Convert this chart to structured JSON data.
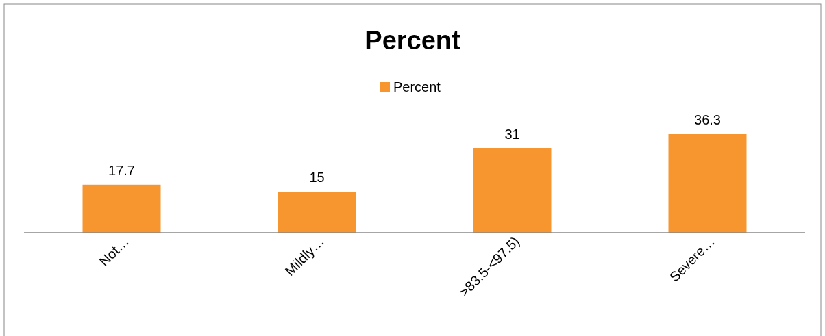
{
  "chart_data": {
    "type": "bar",
    "title": "Percent",
    "categories": [
      "Not…",
      "Mildly…",
      ">83.5-<97.5)",
      "Severe…"
    ],
    "series": [
      {
        "name": "Percent",
        "color": "#f7952e",
        "values": [
          17.7,
          15,
          31,
          36.3
        ]
      }
    ],
    "data_labels": true,
    "legend": "top"
  }
}
